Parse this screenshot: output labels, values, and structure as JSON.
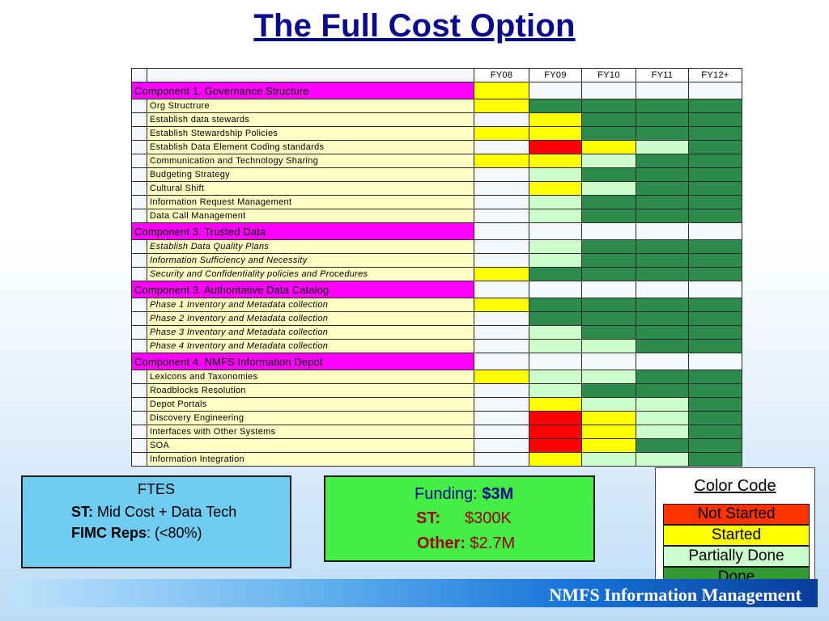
{
  "title": "The Full Cost Option",
  "table": {
    "fy_headers": [
      "FY08",
      "FY09",
      "FY10",
      "FY11",
      "FY12+"
    ],
    "rows": [
      {
        "type": "comp",
        "label": "Component 1. Governance Structure",
        "status": [
          "started",
          "none",
          "none",
          "none",
          "none"
        ]
      },
      {
        "type": "task",
        "label": "Org Structrure",
        "status": [
          "started",
          "done",
          "done",
          "done",
          "done"
        ]
      },
      {
        "type": "task",
        "label": "Establish data stewards",
        "status": [
          "none",
          "started",
          "done",
          "done",
          "done"
        ]
      },
      {
        "type": "task",
        "label": "Establish Stewardship Policies",
        "status": [
          "started",
          "started",
          "done",
          "done",
          "done"
        ]
      },
      {
        "type": "task",
        "label": "Establish Data Element Coding standards",
        "status": [
          "none",
          "notstarted",
          "started",
          "partial",
          "done"
        ]
      },
      {
        "type": "task",
        "label": "Communication and Technology Sharing",
        "status": [
          "started",
          "started",
          "partial",
          "done",
          "done"
        ]
      },
      {
        "type": "task",
        "label": "Budgeting Strategy",
        "status": [
          "none",
          "partial",
          "done",
          "done",
          "done"
        ]
      },
      {
        "type": "task",
        "label": "Cultural Shift",
        "status": [
          "none",
          "started",
          "partial",
          "done",
          "done"
        ]
      },
      {
        "type": "task",
        "label": "Information Request Management",
        "status": [
          "none",
          "partial",
          "done",
          "done",
          "done"
        ]
      },
      {
        "type": "task",
        "label": "Data Call Management",
        "status": [
          "none",
          "partial",
          "done",
          "done",
          "done"
        ]
      },
      {
        "type": "comp",
        "label": "Component 3.  Trusted Data",
        "status": [
          "none",
          "none",
          "none",
          "none",
          "none"
        ]
      },
      {
        "type": "task",
        "italic": true,
        "label": "Establish Data Quality Plans",
        "status": [
          "none",
          "partial",
          "done",
          "done",
          "done"
        ]
      },
      {
        "type": "task",
        "italic": true,
        "label": "Information Sufficiency and Necessity",
        "status": [
          "none",
          "partial",
          "done",
          "done",
          "done"
        ]
      },
      {
        "type": "task",
        "italic": true,
        "label": "Security and Confidentiality policies and Procedures",
        "status": [
          "started",
          "done",
          "done",
          "done",
          "done"
        ]
      },
      {
        "type": "comp",
        "label": "Component 3.  Authoritative Data Catalog",
        "status": [
          "none",
          "none",
          "none",
          "none",
          "none"
        ]
      },
      {
        "type": "task",
        "italic": true,
        "label": "Phase 1 Inventory and Metadata collection",
        "status": [
          "started",
          "done",
          "done",
          "done",
          "done"
        ]
      },
      {
        "type": "task",
        "italic": true,
        "label": "Phase 2 Inventory and Metadata collection",
        "status": [
          "none",
          "done",
          "done",
          "done",
          "done"
        ]
      },
      {
        "type": "task",
        "italic": true,
        "label": "Phase 3 Inventory and Metadata collection",
        "status": [
          "none",
          "partial",
          "done",
          "done",
          "done"
        ]
      },
      {
        "type": "task",
        "italic": true,
        "label": "Phase 4 Inventory and Metadata collection",
        "status": [
          "none",
          "partial",
          "partial",
          "done",
          "done"
        ]
      },
      {
        "type": "comp",
        "label": "Component 4.  NMFS Information Depot",
        "status": [
          "none",
          "none",
          "none",
          "none",
          "none"
        ]
      },
      {
        "type": "task",
        "label": "Lexicons and Taxonomies",
        "status": [
          "started",
          "partial",
          "partial",
          "done",
          "done"
        ]
      },
      {
        "type": "task",
        "label": "Roadblocks Resolution",
        "status": [
          "none",
          "partial",
          "done",
          "done",
          "done"
        ]
      },
      {
        "type": "task",
        "label": "Depot Portals",
        "status": [
          "none",
          "started",
          "partial",
          "partial",
          "done"
        ]
      },
      {
        "type": "task",
        "label": "Discovery Engineering",
        "status": [
          "none",
          "notstarted",
          "started",
          "partial",
          "done"
        ]
      },
      {
        "type": "task",
        "label": "Interfaces with Other Systems",
        "status": [
          "none",
          "notstarted",
          "started",
          "partial",
          "done"
        ]
      },
      {
        "type": "task",
        "label": "SOA",
        "status": [
          "none",
          "notstarted",
          "started",
          "done",
          "done"
        ]
      },
      {
        "type": "task",
        "label": "Information Integration",
        "status": [
          "none",
          "started",
          "partial",
          "partial",
          "done"
        ]
      }
    ]
  },
  "ftes": {
    "title": "FTES",
    "st_label": "ST:",
    "st_value": " Mid Cost + Data Tech",
    "fimc_label": "FIMC Reps",
    "fimc_value": ": (<80%)"
  },
  "funding": {
    "label": "Funding",
    "colon": ": ",
    "amount": "$3M",
    "st_label": "ST:",
    "st_value": "$300K",
    "other_label": "Other:",
    "other_value": " $2.7M"
  },
  "legend": {
    "title": "Color Code",
    "items": [
      {
        "label": "Not Started",
        "color": "#ff3300"
      },
      {
        "label": "Started",
        "color": "#ffff00"
      },
      {
        "label": "Partially Done",
        "color": "#ccffcc"
      },
      {
        "label": "Done",
        "color": "#339933"
      }
    ]
  },
  "footer": "NMFS Information Management",
  "status_colors": {
    "none": "#f4f8fc",
    "started": "#ffff00",
    "notstarted": "#ff0000",
    "partial": "#ccffcc",
    "done": "#2e8b4b"
  }
}
